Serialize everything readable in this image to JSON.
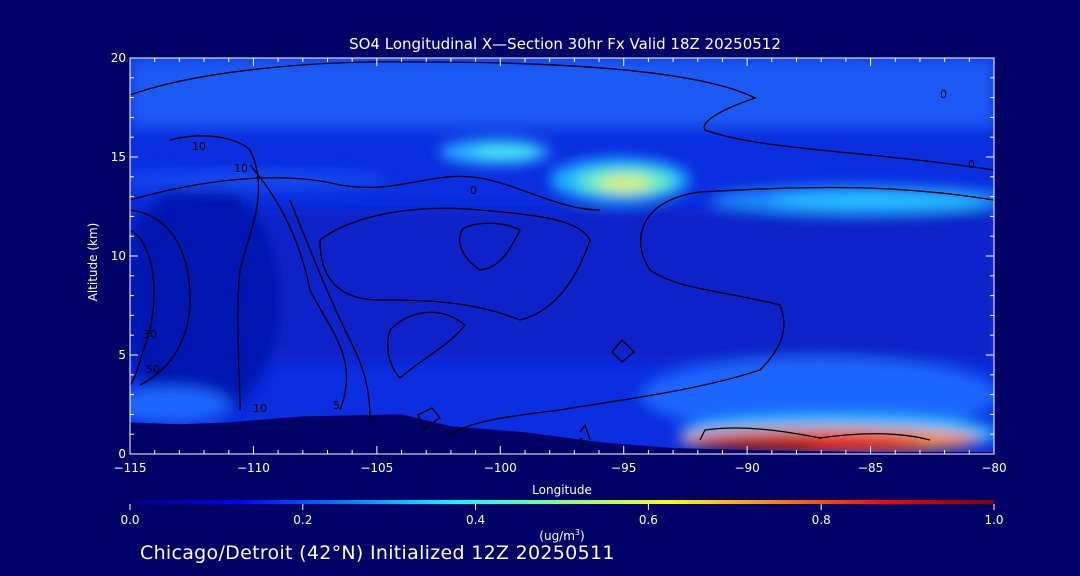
{
  "title": "SO4 Longitudinal X—Section 30hr  Fx Valid 18Z 20250512",
  "footer": "Chicago/Detroit (42°N) Initialized 12Z 20250511",
  "colorbar": {
    "ticks": [
      "0.0",
      "0.2",
      "0.4",
      "0.6",
      "0.8",
      "1.0"
    ],
    "tick_values": [
      0.0,
      0.2,
      0.4,
      0.6,
      0.8,
      1.0
    ],
    "unit_prefix": "(ug/m",
    "unit_sup": "3",
    "unit_suffix": ")",
    "colors": [
      "#00007f",
      "#0000ff",
      "#0080ff",
      "#00ffff",
      "#80ff80",
      "#ffff00",
      "#ff8000",
      "#ff0000",
      "#7f0000"
    ]
  },
  "contour_labels": [
    "10",
    "10",
    "0",
    "0",
    "0",
    "30",
    "50",
    "10",
    "5",
    "1"
  ],
  "chart_data": {
    "type": "heatmap",
    "title": "SO4 Longitudinal X—Section 30hr  Fx Valid 18Z 20250512",
    "xlabel": "Longitude",
    "ylabel": "Altitude (km)",
    "xlim": [
      -115,
      -80
    ],
    "ylim": [
      0,
      20
    ],
    "xticks": [
      "-115",
      "-110",
      "-105",
      "-100",
      "-95",
      "-90",
      "-85",
      "-80"
    ],
    "xtick_values": [
      -115,
      -110,
      -105,
      -100,
      -95,
      -90,
      -85,
      -80
    ],
    "yticks": [
      "0",
      "5",
      "10",
      "15",
      "20"
    ],
    "ytick_values": [
      0,
      5,
      10,
      15,
      20
    ],
    "value_range": [
      0.0,
      1.0
    ],
    "terrain_km": [
      [
        -115,
        1.6
      ],
      [
        -113,
        1.5
      ],
      [
        -111,
        1.6
      ],
      [
        -108,
        1.9
      ],
      [
        -104,
        2.0
      ],
      [
        -102,
        1.4
      ],
      [
        -99,
        1.1
      ],
      [
        -96,
        0.6
      ],
      [
        -93,
        0.3
      ],
      [
        -90,
        0.2
      ],
      [
        -85,
        0.1
      ],
      [
        -80,
        0.1
      ]
    ],
    "features": [
      {
        "lon_range": [
          -91,
          -82
        ],
        "alt_range": [
          0.2,
          1.3
        ],
        "value": 0.95,
        "note": "surface maximum"
      },
      {
        "lon_range": [
          -92,
          -80
        ],
        "alt_range": [
          0.2,
          1.6
        ],
        "value": 0.75
      },
      {
        "lon_range": [
          -97,
          -93
        ],
        "alt_range": [
          12.8,
          14.2
        ],
        "value": 0.55
      },
      {
        "lon_range": [
          -101,
          -97
        ],
        "alt_range": [
          14.8,
          15.8
        ],
        "value": 0.4
      },
      {
        "lon_range": [
          -91,
          -80
        ],
        "alt_range": [
          12.3,
          14.0
        ],
        "value": 0.35
      },
      {
        "lon_range": [
          -115,
          -80
        ],
        "alt_range": [
          16,
          20
        ],
        "value": 0.2
      }
    ]
  }
}
